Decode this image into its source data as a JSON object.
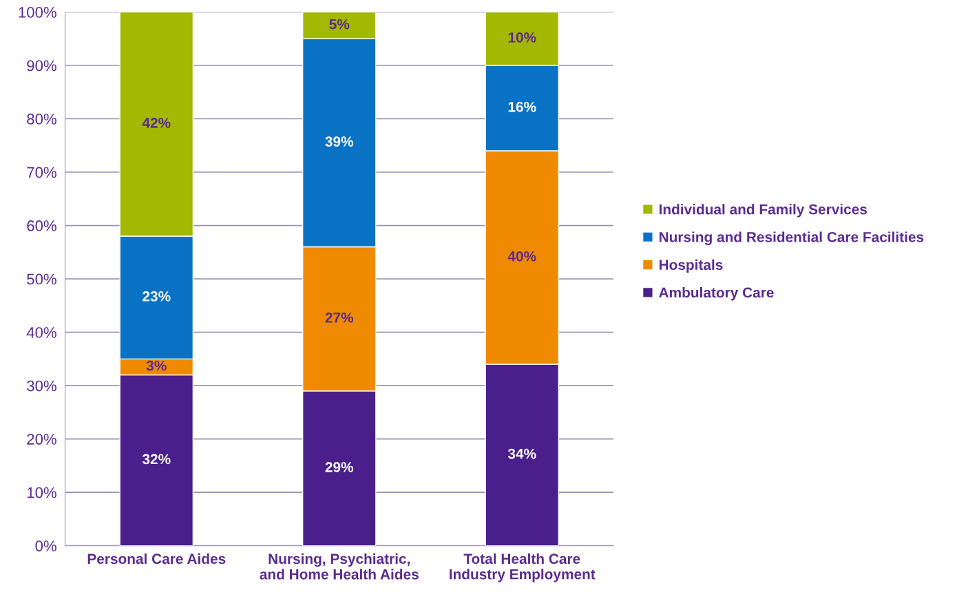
{
  "chart_data": {
    "type": "bar",
    "stacked": true,
    "categories": [
      "Personal Care Aides",
      "Nursing, Psychiatric,\nand Home Health Aides",
      "Total Health Care\nIndustry Employment"
    ],
    "series": [
      {
        "name": "Ambulatory Care",
        "color": "#4a1f8c",
        "values": [
          32,
          29,
          34
        ],
        "value_labels": [
          "32%",
          "29%",
          "34%"
        ]
      },
      {
        "name": "Hospitals",
        "color": "#f08a00",
        "values": [
          3,
          27,
          40
        ],
        "value_labels": [
          "3%",
          "27%",
          "40%"
        ]
      },
      {
        "name": "Nursing and Residential Care Facilities",
        "color": "#0a72c4",
        "values": [
          23,
          39,
          16
        ],
        "value_labels": [
          "23%",
          "39%",
          "16%"
        ]
      },
      {
        "name": "Individual and Family Services",
        "color": "#a3b800",
        "values": [
          42,
          5,
          10
        ],
        "value_labels": [
          "42%",
          "5%",
          "10%"
        ]
      }
    ],
    "ylim": [
      0,
      100
    ],
    "yticks": [
      {
        "value": 0,
        "label": "0%"
      },
      {
        "value": 10,
        "label": "10%"
      },
      {
        "value": 20,
        "label": "20%"
      },
      {
        "value": 30,
        "label": "30%"
      },
      {
        "value": 40,
        "label": "40%"
      },
      {
        "value": 50,
        "label": "50%"
      },
      {
        "value": 60,
        "label": "60%"
      },
      {
        "value": 70,
        "label": "70%"
      },
      {
        "value": 80,
        "label": "80%"
      },
      {
        "value": 90,
        "label": "90%"
      },
      {
        "value": 100,
        "label": "100%"
      }
    ],
    "grid": "y",
    "legend": "right"
  }
}
